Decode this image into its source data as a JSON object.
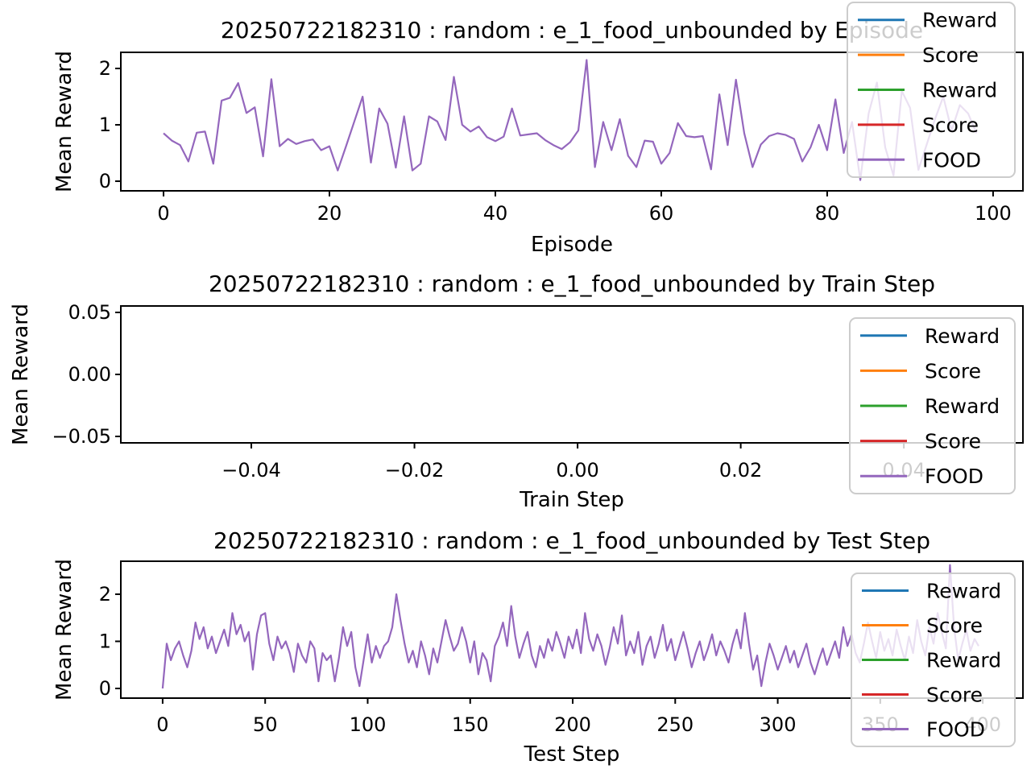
{
  "figure": {
    "background": "#ffffff",
    "line_color": "#9467bd",
    "legend": {
      "entries": [
        {
          "label": "Reward",
          "color": "#1f77b4"
        },
        {
          "label": "Score",
          "color": "#ff7f0e"
        },
        {
          "label": "Reward",
          "color": "#2ca02c"
        },
        {
          "label": "Score",
          "color": "#d62728"
        },
        {
          "label": "FOOD",
          "color": "#9467bd"
        }
      ]
    }
  },
  "chart_data": [
    {
      "type": "line",
      "title": "20250722182310 : random : e_1_food_unbounded by Episode",
      "xlabel": "Episode",
      "ylabel": "Mean Reward",
      "xlim": [
        -5.15,
        103.6
      ],
      "ylim": [
        -0.171,
        2.286
      ],
      "grid": false,
      "legend_position": "upper right, overlapping plot and title",
      "x_ticks": [
        {
          "value": 0,
          "label": "0"
        },
        {
          "value": 20,
          "label": "20"
        },
        {
          "value": 40,
          "label": "40"
        },
        {
          "value": 60,
          "label": "60"
        },
        {
          "value": 80,
          "label": "80"
        },
        {
          "value": 100,
          "label": "100"
        }
      ],
      "y_ticks": [
        {
          "value": 0,
          "label": "0"
        },
        {
          "value": 1,
          "label": "1"
        },
        {
          "value": 2,
          "label": "2"
        }
      ],
      "series": [
        {
          "name": "FOOD",
          "color": "#9467bd",
          "x_start": 0,
          "x_step": 1,
          "values": [
            0.85,
            0.72,
            0.64,
            0.35,
            0.86,
            0.88,
            0.31,
            1.43,
            1.48,
            1.74,
            1.21,
            1.31,
            0.44,
            1.81,
            0.62,
            0.75,
            0.66,
            0.71,
            0.74,
            0.55,
            0.62,
            0.19,
            0.62,
            1.06,
            1.5,
            0.33,
            1.29,
            1.02,
            0.24,
            1.15,
            0.19,
            0.31,
            1.15,
            1.06,
            0.73,
            1.85,
            1.0,
            0.88,
            0.97,
            0.78,
            0.71,
            0.79,
            1.29,
            0.81,
            0.83,
            0.85,
            0.73,
            0.64,
            0.57,
            0.69,
            0.9,
            2.15,
            0.25,
            1.05,
            0.55,
            1.1,
            0.45,
            0.25,
            0.72,
            0.7,
            0.31,
            0.5,
            1.03,
            0.8,
            0.78,
            0.8,
            0.21,
            1.54,
            0.64,
            1.8,
            0.85,
            0.25,
            0.65,
            0.8,
            0.85,
            0.82,
            0.75,
            0.35,
            0.6,
            1.0,
            0.55,
            1.45,
            0.5,
            1.05,
            0.02,
            1.2,
            1.75,
            0.6,
            0.1,
            1.6,
            1.3,
            0.2,
            0.65,
            1.1,
            1.5,
            0.9,
            1.35,
            1.2,
            0.85
          ]
        }
      ]
    },
    {
      "type": "line",
      "title": "20250722182310 : random : e_1_food_unbounded by Train Step",
      "xlabel": "Train Step",
      "ylabel": "Mean Reward",
      "xlim": [
        -0.056,
        0.0546
      ],
      "ylim": [
        -0.0552,
        0.0552
      ],
      "grid": false,
      "legend_position": "lower right, overlapping plot edge and 0.04 tick",
      "x_ticks": [
        {
          "value": -0.04,
          "label": "−0.04"
        },
        {
          "value": -0.02,
          "label": "−0.02"
        },
        {
          "value": 0.0,
          "label": "0.00"
        },
        {
          "value": 0.02,
          "label": "0.02"
        },
        {
          "value": 0.04,
          "label": "0.04"
        }
      ],
      "y_ticks": [
        {
          "value": 0.05,
          "label": "0.05"
        },
        {
          "value": 0.0,
          "label": "0.00"
        },
        {
          "value": -0.05,
          "label": "−0.05"
        }
      ],
      "series": []
    },
    {
      "type": "line",
      "title": "20250722182310 : random : e_1_food_unbounded by Test Step",
      "xlabel": "Test Step",
      "ylabel": "Mean Reward",
      "xlim": [
        -20.4,
        419.6
      ],
      "ylim": [
        -0.205,
        2.7
      ],
      "grid": false,
      "legend_position": "right, overlapping plot and 350/400 ticks",
      "x_ticks": [
        {
          "value": 0,
          "label": "0"
        },
        {
          "value": 50,
          "label": "50"
        },
        {
          "value": 100,
          "label": "100"
        },
        {
          "value": 150,
          "label": "150"
        },
        {
          "value": 200,
          "label": "200"
        },
        {
          "value": 250,
          "label": "250"
        },
        {
          "value": 300,
          "label": "300"
        },
        {
          "value": 350,
          "label": "350"
        },
        {
          "value": 400,
          "label": "400"
        }
      ],
      "y_ticks": [
        {
          "value": 0,
          "label": "0"
        },
        {
          "value": 1,
          "label": "1"
        },
        {
          "value": 2,
          "label": "2"
        }
      ],
      "series": [
        {
          "name": "FOOD",
          "color": "#9467bd",
          "x_start": 0,
          "x_step": 2,
          "values": [
            0.0,
            0.95,
            0.6,
            0.85,
            1.0,
            0.7,
            0.45,
            0.8,
            1.4,
            1.05,
            1.3,
            0.85,
            1.1,
            0.75,
            1.0,
            1.25,
            0.9,
            1.6,
            1.15,
            1.35,
            1.0,
            1.2,
            0.4,
            1.15,
            1.55,
            1.6,
            0.95,
            0.6,
            1.1,
            0.85,
            1.0,
            0.75,
            0.35,
            0.95,
            0.7,
            0.55,
            1.0,
            0.85,
            0.15,
            0.75,
            0.6,
            0.7,
            0.15,
            0.65,
            1.3,
            0.9,
            1.2,
            0.45,
            0.05,
            0.6,
            1.15,
            0.55,
            0.9,
            0.65,
            0.9,
            1.0,
            1.3,
            2.0,
            1.45,
            0.95,
            0.55,
            0.8,
            0.45,
            1.0,
            0.7,
            0.3,
            0.85,
            0.55,
            1.0,
            1.45,
            1.1,
            0.8,
            0.95,
            1.3,
            1.0,
            0.55,
            1.0,
            0.3,
            0.75,
            0.6,
            0.15,
            0.9,
            1.1,
            1.4,
            0.9,
            1.75,
            1.1,
            0.65,
            0.95,
            1.2,
            0.7,
            0.45,
            0.9,
            0.65,
            1.05,
            0.8,
            1.2,
            0.95,
            0.65,
            1.1,
            0.85,
            1.25,
            0.75,
            1.6,
            1.05,
            0.8,
            1.15,
            0.9,
            0.5,
            0.85,
            1.3,
            0.95,
            1.55,
            0.7,
            1.0,
            0.75,
            1.2,
            0.5,
            0.9,
            1.1,
            0.65,
            0.95,
            1.35,
            0.8,
            1.05,
            0.6,
            0.9,
            1.2,
            0.85,
            0.45,
            0.75,
            1.0,
            0.6,
            0.85,
            1.15,
            0.7,
            1.0,
            0.8,
            0.55,
            0.95,
            1.25,
            0.85,
            1.6,
            0.95,
            0.4,
            0.7,
            0.05,
            0.55,
            0.95,
            0.7,
            0.4,
            0.65,
            0.9,
            0.55,
            0.8,
            0.45,
            0.7,
            0.95,
            0.55,
            0.3,
            0.6,
            0.85,
            0.5,
            0.75,
            1.0,
            0.65,
            1.3,
            0.9,
            1.15,
            0.75,
            0.55,
            0.95,
            1.4,
            1.0,
            0.65,
            1.2,
            0.8,
            1.05,
            0.7,
            1.25,
            0.9,
            0.6,
            1.1,
            0.75,
            1.45,
            1.0,
            0.7,
            1.3,
            0.95,
            1.6,
            1.2,
            0.85,
            2.62,
            1.3,
            0.6,
            0.95,
            1.25,
            0.8,
            1.05,
            0.9
          ]
        }
      ]
    }
  ]
}
